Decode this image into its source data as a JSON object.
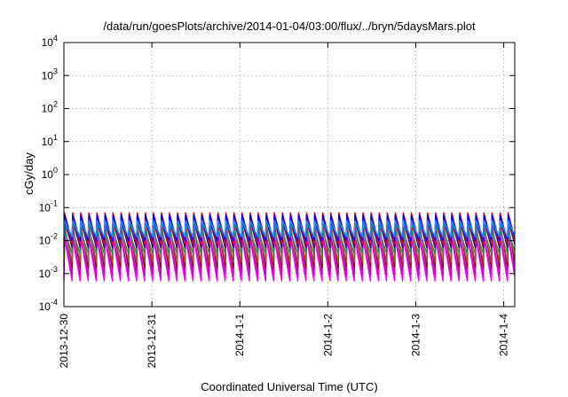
{
  "chart_data": {
    "type": "line",
    "title": "/data/run/goesPlots/archive/2014-01-04/03:00/flux/../bryn/5daysMars.plot",
    "xlabel": "Coordinated Universal Time (UTC)",
    "ylabel": "cGy/day",
    "yscale": "log",
    "ylim": [
      0.0001,
      10000
    ],
    "yticks": [
      {
        "base": "10",
        "exp": "-4",
        "value": 0.0001
      },
      {
        "base": "10",
        "exp": "-3",
        "value": 0.001
      },
      {
        "base": "10",
        "exp": "-2",
        "value": 0.01
      },
      {
        "base": "10",
        "exp": "-1",
        "value": 0.1
      },
      {
        "base": "10",
        "exp": "0",
        "value": 1
      },
      {
        "base": "10",
        "exp": "1",
        "value": 10
      },
      {
        "base": "10",
        "exp": "2",
        "value": 100
      },
      {
        "base": "10",
        "exp": "3",
        "value": 1000
      },
      {
        "base": "10",
        "exp": "4",
        "value": 10000
      }
    ],
    "xlim": [
      "2013-12-30 00:00",
      "2014-01-04 03:00"
    ],
    "xticks": [
      {
        "label": "2013-12-30",
        "value": "2013-12-30 00:00"
      },
      {
        "label": "2013-12-31",
        "value": "2013-12-31 00:00"
      },
      {
        "label": "2014-1-1",
        "value": "2014-01-01 00:00"
      },
      {
        "label": "2014-1-2",
        "value": "2014-01-02 00:00"
      },
      {
        "label": "2014-1-3",
        "value": "2014-01-03 00:00"
      },
      {
        "label": "2014-1-4",
        "value": "2014-01-04 00:00"
      }
    ],
    "grid": true,
    "legend": "none",
    "pattern": {
      "description": "sawtooth",
      "period_hours": 2.2,
      "phase_hours": 0.2
    },
    "series": [
      {
        "color": "#ff00ff",
        "peak": 0.012,
        "trough": 0.0006
      },
      {
        "color": "#cc00cc",
        "peak": 0.015,
        "trough": 0.0009
      },
      {
        "color": "#8b0000",
        "peak": 0.03,
        "trough": 0.0015
      },
      {
        "color": "#a0522d",
        "peak": 0.025,
        "trough": 0.0022
      },
      {
        "color": "#2e8b57",
        "peak": 0.02,
        "trough": 0.004
      },
      {
        "color": "#00ced1",
        "peak": 0.035,
        "trough": 0.007
      },
      {
        "color": "#4b0082",
        "peak": 0.045,
        "trough": 0.006
      },
      {
        "color": "#ff0000",
        "peak": 0.07,
        "trough": 0.008
      },
      {
        "color": "#0000ff",
        "peak": 0.06,
        "trough": 0.01
      },
      {
        "color": "#1e90ff",
        "peak": 0.04,
        "trough": 0.013
      }
    ]
  }
}
